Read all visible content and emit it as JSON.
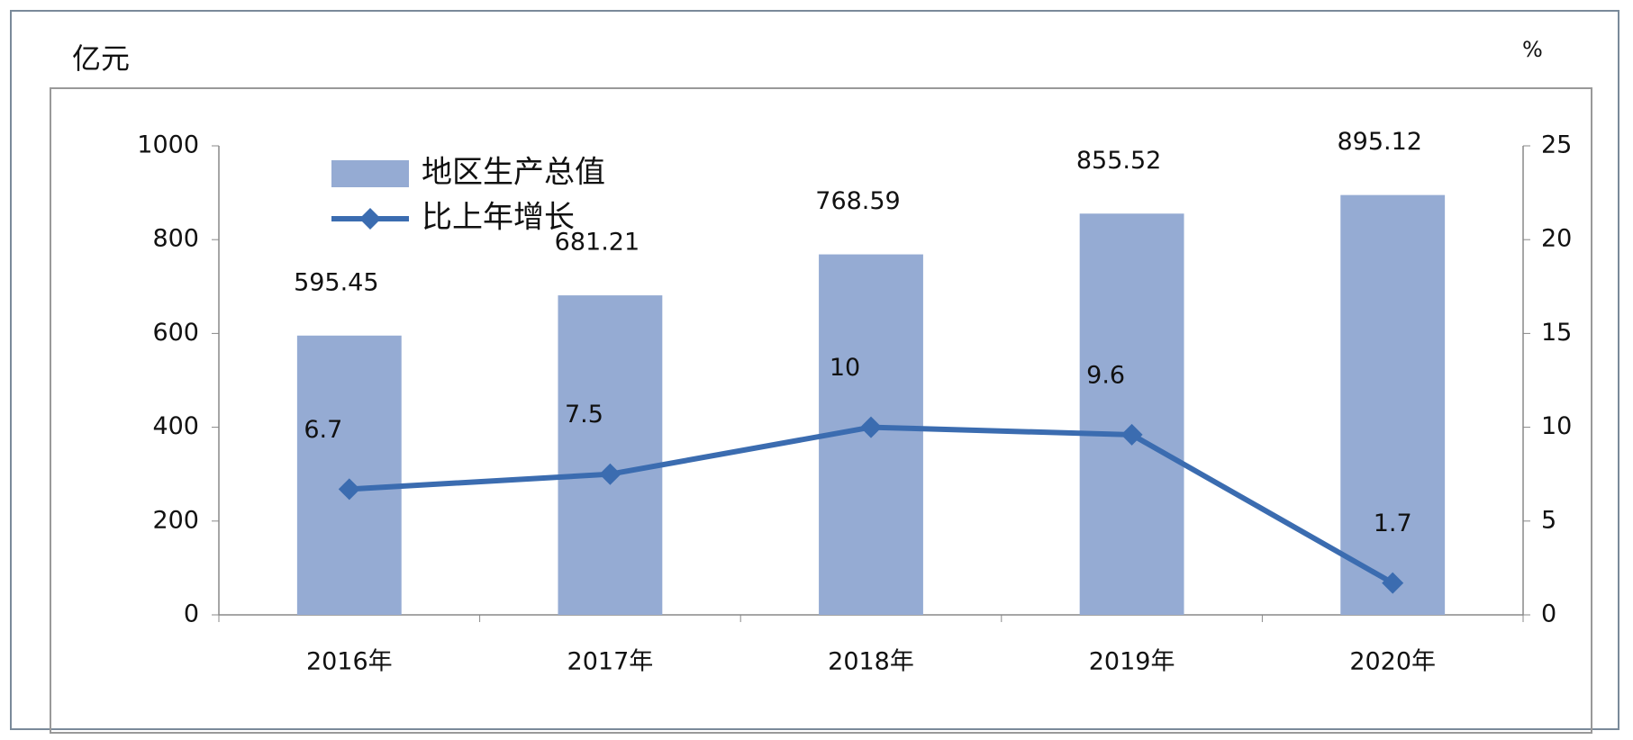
{
  "chart_data": {
    "type": "bar",
    "y_label": "亿元",
    "y2_label": "%",
    "categories": [
      "2016年",
      "2017年",
      "2018年",
      "2019年",
      "2020年"
    ],
    "series": [
      {
        "name": "地区生产总值",
        "type": "bar",
        "color": "#95abd3",
        "values": [
          595.45,
          681.21,
          768.59,
          855.52,
          895.12
        ]
      },
      {
        "name": "比上年增长",
        "type": "line",
        "axis": "y2",
        "color": "#3b6cb0",
        "values": [
          6.7,
          7.5,
          10,
          9.6,
          1.7
        ]
      }
    ],
    "ylim": [
      0,
      1000
    ],
    "yticks": [
      0,
      200,
      400,
      600,
      800,
      1000
    ],
    "y2lim": [
      0,
      25
    ],
    "y2ticks": [
      0,
      5,
      10,
      15,
      20,
      25
    ],
    "legend": "upper-left"
  }
}
